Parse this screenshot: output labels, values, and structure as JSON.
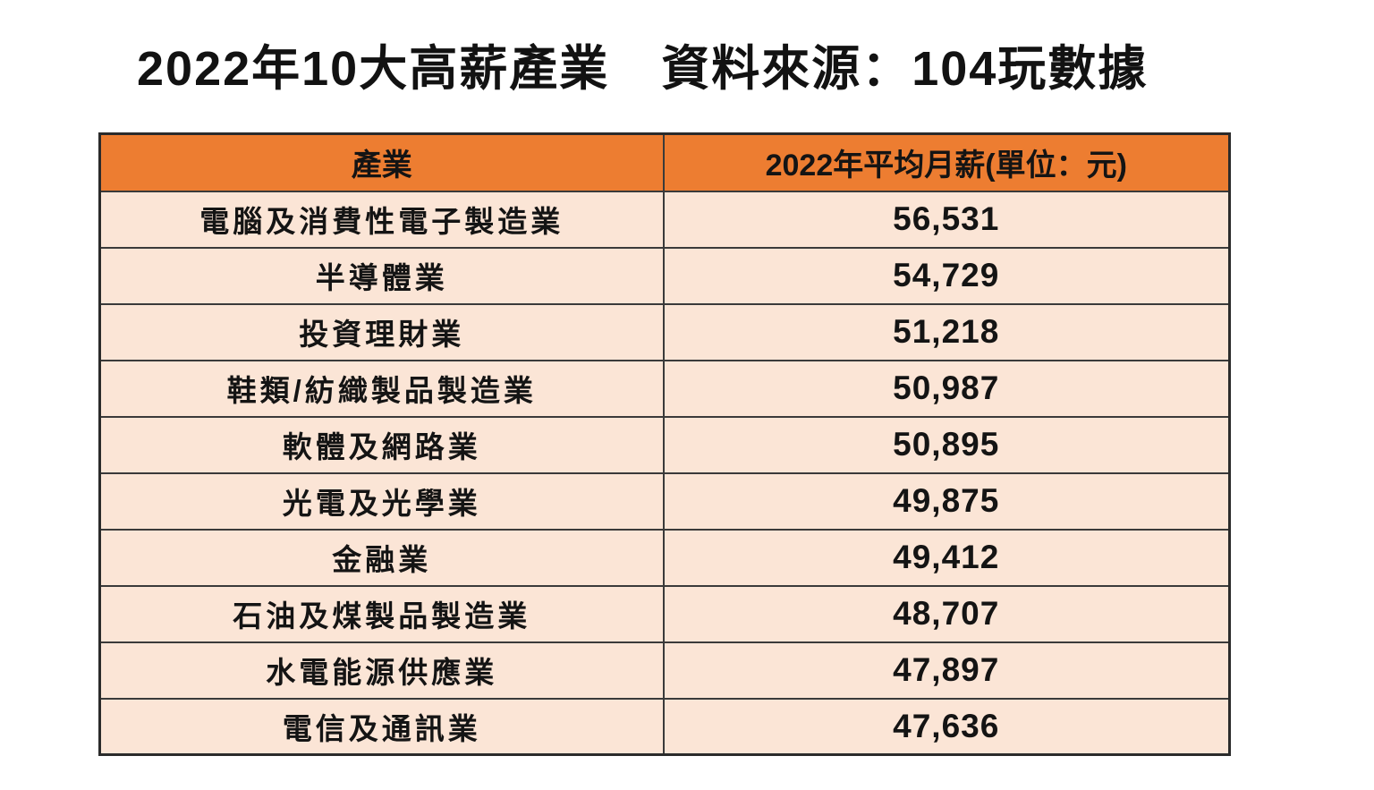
{
  "title": {
    "main": "2022年10大高薪產業",
    "source": "資料來源：104玩數據"
  },
  "chart_data": {
    "type": "table",
    "title": "2022年10大高薪產業",
    "source_label": "資料來源：104玩數據",
    "columns": [
      "產業",
      "2022年平均月薪(單位：元)"
    ],
    "rows": [
      [
        "電腦及消費性電子製造業",
        "56,531"
      ],
      [
        "半導體業",
        "54,729"
      ],
      [
        "投資理財業",
        "51,218"
      ],
      [
        "鞋類/紡織製品製造業",
        "50,987"
      ],
      [
        "軟體及網路業",
        "50,895"
      ],
      [
        "光電及光學業",
        "49,875"
      ],
      [
        "金融業",
        "49,412"
      ],
      [
        "石油及煤製品製造業",
        "48,707"
      ],
      [
        "水電能源供應業",
        "47,897"
      ],
      [
        "電信及通訊業",
        "47,636"
      ]
    ],
    "values": [
      56531,
      54729,
      51218,
      50987,
      50895,
      49875,
      49412,
      48707,
      47897,
      47636
    ],
    "unit": "元"
  },
  "colors": {
    "header_bg": "#ED7D31",
    "row_bg": "#FBE5D6",
    "border": "#3a3a3a",
    "text": "#141414",
    "page_bg": "#ffffff"
  }
}
